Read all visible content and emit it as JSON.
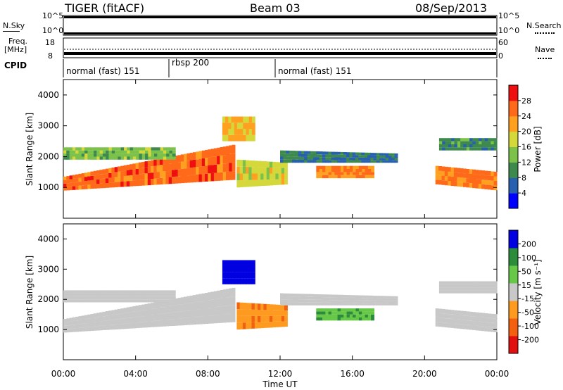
{
  "header": {
    "station": "TIGER (fitACF)",
    "beam": "Beam 03",
    "date": "08/Sep/2013"
  },
  "noise_panel": {
    "left_label": "N.Sky",
    "right_label": "N.Search",
    "left_ticks": [
      "10^5",
      "10^0"
    ],
    "right_ticks": [
      "10^5",
      "10^0"
    ]
  },
  "freq_panel": {
    "left_label_line1": "Freq.",
    "left_label_line2": "[MHz]",
    "right_label": "Nave",
    "left_ticks": [
      "18",
      "8"
    ],
    "right_ticks": [
      "60",
      "0"
    ]
  },
  "cpid_panel": {
    "label": "CPID",
    "segments": [
      "normal (fast) 151",
      "rbsp 200",
      "normal (fast) 151"
    ]
  },
  "colors": {
    "power": [
      "#0000ff",
      "#2860b0",
      "#3e8a4e",
      "#7cc24a",
      "#d4d83a",
      "#ffa020",
      "#ff6a1a",
      "#ee1010"
    ],
    "velocity": [
      "#0000e0",
      "#2c8c3c",
      "#66c846",
      "#c8c8c8",
      "#ff9a20",
      "#f26010",
      "#e01010"
    ]
  },
  "chart_data": [
    {
      "type": "heatmap",
      "ylabel": "Slant Range [km]",
      "colorbar_label": "Power [dB]",
      "colorbar_ticks": [
        "28",
        "24",
        "20",
        "16",
        "12",
        "8",
        "4"
      ],
      "y_ticks": [
        "4000",
        "3000",
        "2000",
        "1000"
      ],
      "ylim": [
        0,
        4500
      ],
      "xlim": [
        "00:00",
        "00:00"
      ],
      "echo_bands": [
        {
          "t0": 0,
          "t1": 9.5,
          "r0_start": 900,
          "r1_start": 1350,
          "r0_end": 1250,
          "r1_end": 2400,
          "level": 26
        },
        {
          "t0": 0,
          "t1": 6.2,
          "r0_start": 1900,
          "r1_start": 2300,
          "r0_end": 1900,
          "r1_end": 2300,
          "level": 14
        },
        {
          "t0": 8.8,
          "t1": 10.6,
          "r0_start": 2500,
          "r1_start": 3300,
          "r0_end": 2500,
          "r1_end": 3300,
          "level": 20
        },
        {
          "t0": 9.6,
          "t1": 12.4,
          "r0_start": 1000,
          "r1_start": 1900,
          "r0_end": 1100,
          "r1_end": 1800,
          "level": 18
        },
        {
          "t0": 12.0,
          "t1": 18.5,
          "r0_start": 1800,
          "r1_start": 2200,
          "r0_end": 1800,
          "r1_end": 2100,
          "level": 8
        },
        {
          "t0": 14.0,
          "t1": 17.2,
          "r0_start": 1300,
          "r1_start": 1700,
          "r0_end": 1300,
          "r1_end": 1700,
          "level": 24
        },
        {
          "t0": 20.6,
          "t1": 24.0,
          "r0_start": 1100,
          "r1_start": 1700,
          "r0_end": 900,
          "r1_end": 1500,
          "level": 25
        },
        {
          "t0": 20.8,
          "t1": 24.0,
          "r0_start": 2200,
          "r1_start": 2600,
          "r0_end": 2200,
          "r1_end": 2600,
          "level": 10
        }
      ]
    },
    {
      "type": "heatmap",
      "ylabel": "Slant Range [km]",
      "colorbar_label": "Velocity [m s⁻¹]",
      "colorbar_ticks": [
        "200",
        "100",
        "50",
        "15",
        "-15",
        "-50",
        "-100",
        "-200"
      ],
      "y_ticks": [
        "4000",
        "3000",
        "2000",
        "1000"
      ],
      "ylim": [
        0,
        4500
      ],
      "xlim": [
        "00:00",
        "00:00"
      ],
      "echo_bands": [
        {
          "t0": 0,
          "t1": 9.5,
          "r0_start": 900,
          "r1_start": 1350,
          "r0_end": 1250,
          "r1_end": 2400,
          "level": 0
        },
        {
          "t0": 0,
          "t1": 6.2,
          "r0_start": 1900,
          "r1_start": 2300,
          "r0_end": 1900,
          "r1_end": 2300,
          "level": 0
        },
        {
          "t0": 8.8,
          "t1": 10.6,
          "r0_start": 2500,
          "r1_start": 3300,
          "r0_end": 2500,
          "r1_end": 3300,
          "level": 180
        },
        {
          "t0": 9.6,
          "t1": 12.4,
          "r0_start": 1000,
          "r1_start": 1900,
          "r0_end": 1100,
          "r1_end": 1800,
          "level": -60
        },
        {
          "t0": 12.0,
          "t1": 18.5,
          "r0_start": 1800,
          "r1_start": 2200,
          "r0_end": 1800,
          "r1_end": 2100,
          "level": 0
        },
        {
          "t0": 14.0,
          "t1": 17.2,
          "r0_start": 1300,
          "r1_start": 1700,
          "r0_end": 1300,
          "r1_end": 1700,
          "level": 60
        },
        {
          "t0": 20.6,
          "t1": 24.0,
          "r0_start": 1100,
          "r1_start": 1700,
          "r0_end": 900,
          "r1_end": 1500,
          "level": 0
        },
        {
          "t0": 20.8,
          "t1": 24.0,
          "r0_start": 2200,
          "r1_start": 2600,
          "r0_end": 2200,
          "r1_end": 2600,
          "level": 0
        }
      ]
    }
  ],
  "xaxis": {
    "ticks": [
      "00:00",
      "04:00",
      "08:00",
      "12:00",
      "16:00",
      "20:00",
      "00:00"
    ],
    "label": "Time UT"
  }
}
